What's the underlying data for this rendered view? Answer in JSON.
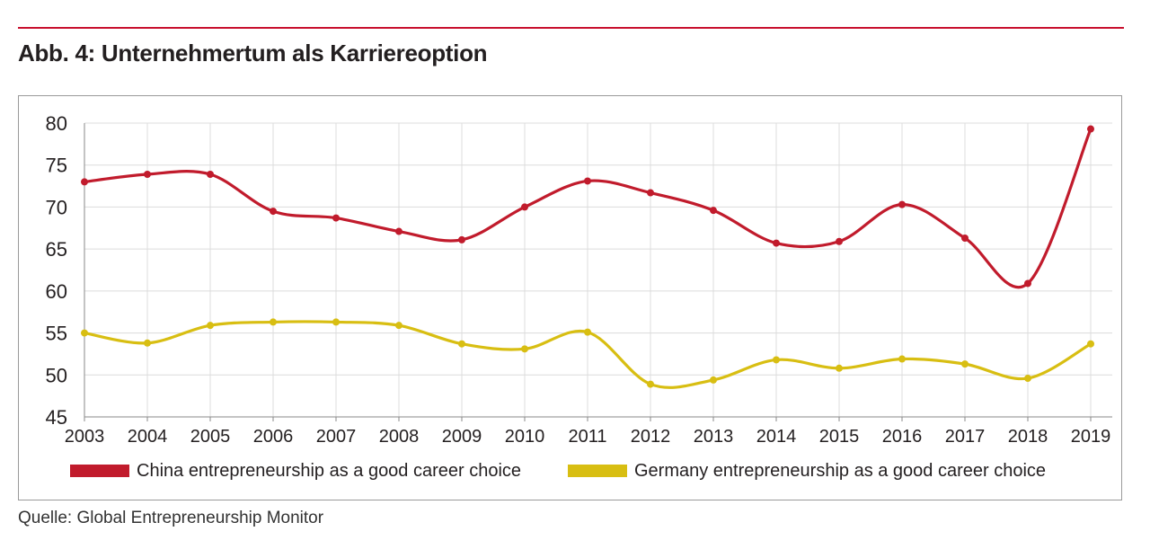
{
  "title": "Abb. 4: Unternehmertum als Karriereoption",
  "source": "Quelle: Global Entrepreneurship Monitor",
  "colors": {
    "rule": "#c8102e",
    "china": "#c11b2c",
    "germany": "#d8be12",
    "grid": "#dcdcdc"
  },
  "chart_data": {
    "type": "line",
    "title": "Abb. 4: Unternehmertum als Karriereoption",
    "xlabel": "",
    "ylabel": "",
    "x": [
      "2003",
      "2004",
      "2005",
      "2006",
      "2007",
      "2008",
      "2009",
      "2010",
      "2011",
      "2012",
      "2013",
      "2014",
      "2015",
      "2016",
      "2017",
      "2018",
      "2019"
    ],
    "ylim": [
      45,
      80
    ],
    "yticks": [
      45,
      50,
      55,
      60,
      65,
      70,
      75,
      80
    ],
    "grid": true,
    "legend_position": "bottom",
    "series": [
      {
        "name": "China entrepreneurship as a good career choice",
        "color": "#c11b2c",
        "values": [
          73.0,
          73.9,
          73.9,
          69.5,
          68.7,
          67.1,
          66.1,
          70.0,
          73.1,
          71.7,
          69.6,
          65.7,
          65.9,
          70.3,
          66.3,
          60.9,
          79.3
        ]
      },
      {
        "name": "Germany entrepreneurship as a good career choice",
        "color": "#d8be12",
        "values": [
          55.0,
          53.8,
          55.9,
          56.3,
          56.3,
          55.9,
          53.7,
          53.1,
          55.1,
          48.9,
          49.4,
          51.8,
          50.8,
          51.9,
          51.3,
          49.6,
          53.7
        ]
      }
    ]
  }
}
